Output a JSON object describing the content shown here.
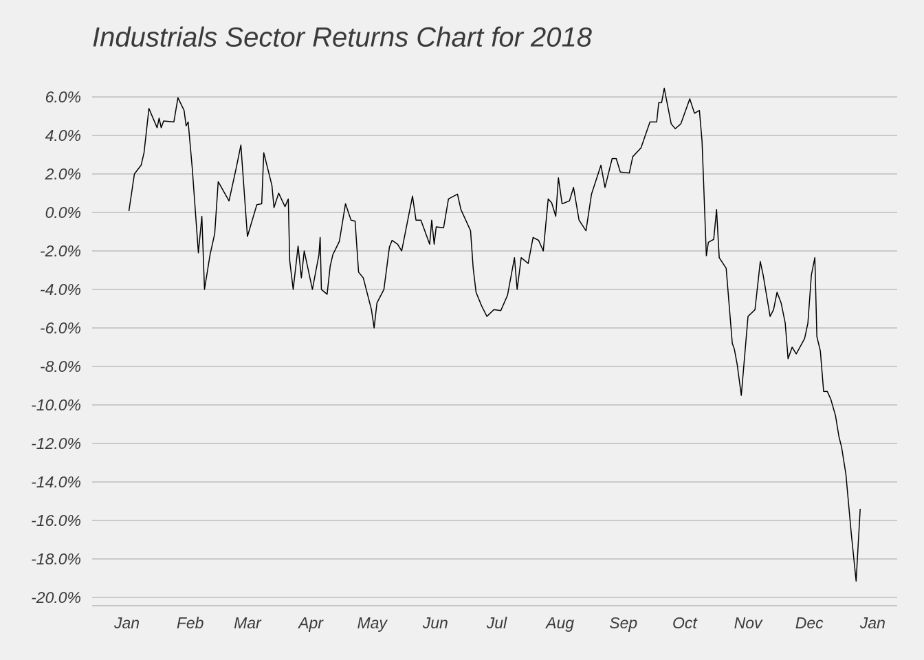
{
  "chart_data": {
    "type": "line",
    "title": "Industrials Sector Returns Chart for 2018",
    "color": "#000000",
    "grid": true,
    "xlim": [
      -17,
      377
    ],
    "ylim": [
      -20.5,
      6.5
    ],
    "xticks": [
      {
        "value": 0,
        "label": "Jan"
      },
      {
        "value": 31,
        "label": "Feb"
      },
      {
        "value": 59,
        "label": "Mar"
      },
      {
        "value": 90,
        "label": "Apr"
      },
      {
        "value": 120,
        "label": "May"
      },
      {
        "value": 151,
        "label": "Jun"
      },
      {
        "value": 181,
        "label": "Jul"
      },
      {
        "value": 212,
        "label": "Aug"
      },
      {
        "value": 243,
        "label": "Sep"
      },
      {
        "value": 273,
        "label": "Oct"
      },
      {
        "value": 304,
        "label": "Nov"
      },
      {
        "value": 334,
        "label": "Dec"
      },
      {
        "value": 365,
        "label": "Jan"
      }
    ],
    "yticks": [
      {
        "value": 6,
        "label": "6.0%"
      },
      {
        "value": 4,
        "label": "4.0%"
      },
      {
        "value": 2,
        "label": "2.0%"
      },
      {
        "value": 0,
        "label": "0.0%"
      },
      {
        "value": -2,
        "label": "-2.0%"
      },
      {
        "value": -4,
        "label": "-4.0%"
      },
      {
        "value": -6,
        "label": "-6.0%"
      },
      {
        "value": -8,
        "label": "-8.0%"
      },
      {
        "value": -10,
        "label": "-10.0%"
      },
      {
        "value": -12,
        "label": "-12.0%"
      },
      {
        "value": -14,
        "label": "-14.0%"
      },
      {
        "value": -16,
        "label": "-16.0%"
      },
      {
        "value": -18,
        "label": "-18.0%"
      },
      {
        "value": -20,
        "label": "-20.0%"
      }
    ],
    "x": [
      1,
      3.7,
      7,
      8.4,
      10.8,
      14.8,
      15.8,
      16.8,
      18,
      23,
      25,
      28,
      29,
      30,
      32,
      35,
      36.7,
      38,
      40.7,
      43,
      44.7,
      50,
      53.5,
      55.8,
      59,
      63.6,
      66,
      67,
      71,
      72,
      74.3,
      77.4,
      79,
      79.7,
      81.4,
      83.8,
      85.4,
      86.8,
      90.8,
      94,
      94.6,
      95.2,
      98,
      99.5,
      100.8,
      104,
      107,
      109.7,
      111.7,
      113.4,
      115.7,
      119.7,
      121,
      122.4,
      125.8,
      128.5,
      129.8,
      132.5,
      134.5,
      139.8,
      141.5,
      143.9,
      148.2,
      149.2,
      150.4,
      151.4,
      155,
      157.4,
      161.8,
      163.5,
      168.2,
      169.5,
      170.9,
      173.6,
      176.2,
      179.6,
      183,
      186.3,
      189.7,
      191,
      193,
      196.4,
      198.8,
      201.5,
      203.8,
      206.2,
      207.9,
      209.9,
      211.2,
      213,
      216.6,
      218.6,
      221.3,
      224.7,
      227.4,
      232,
      234,
      237.5,
      239.5,
      241.5,
      245.9,
      247.6,
      251.6,
      256,
      259.3,
      260.3,
      261.7,
      263,
      266.4,
      268.4,
      271.1,
      275.5,
      277.8,
      280.2,
      281.5,
      283.6,
      284.6,
      287.2,
      288.6,
      289.9,
      293.3,
      296.3,
      297.3,
      298.7,
      300.7,
      302,
      304,
      307.4,
      310,
      311.4,
      314.8,
      316.5,
      318.2,
      320.2,
      322.2,
      323.6,
      325.6,
      327.6,
      331.7,
      333.3,
      335,
      336.7,
      337.7,
      339.4,
      341,
      342.8,
      344.5,
      346.8,
      348.5,
      349.8,
      351.9,
      354.5,
      356.9,
      358.9
    ],
    "values": [
      0.07,
      2.0,
      2.46,
      3.1,
      5.4,
      4.4,
      4.9,
      4.4,
      4.75,
      4.7,
      5.96,
      5.3,
      4.5,
      4.7,
      2.3,
      -2.1,
      -0.2,
      -4,
      -2.2,
      -1.1,
      1.6,
      0.6,
      2.3,
      3.5,
      -1.25,
      0.4,
      0.45,
      3.1,
      1.4,
      0.25,
      1.0,
      0.3,
      0.7,
      -2.5,
      -4,
      -1.75,
      -3.4,
      -2.0,
      -4,
      -2.2,
      -1.3,
      -4,
      -4.25,
      -2.8,
      -2.2,
      -1.5,
      0.45,
      -0.4,
      -0.45,
      -3.1,
      -3.4,
      -5.05,
      -6,
      -4.7,
      -4,
      -1.8,
      -1.45,
      -1.65,
      -2,
      0.85,
      -0.4,
      -0.4,
      -1.65,
      -0.4,
      -1.65,
      -0.75,
      -0.8,
      0.7,
      0.95,
      0.15,
      -0.95,
      -2.9,
      -4.15,
      -4.85,
      -5.4,
      -5.05,
      -5.1,
      -4.3,
      -2.35,
      -4,
      -2.35,
      -2.65,
      -1.3,
      -1.45,
      -2,
      0.7,
      0.5,
      -0.2,
      1.8,
      0.45,
      0.6,
      1.3,
      -0.4,
      -0.95,
      0.95,
      2.45,
      1.3,
      2.8,
      2.8,
      2.1,
      2.05,
      2.9,
      3.35,
      4.7,
      4.7,
      5.7,
      5.7,
      6.45,
      4.6,
      4.35,
      4.6,
      5.9,
      5.15,
      5.3,
      3.7,
      -2.25,
      -1.55,
      -1.4,
      0.15,
      -2.35,
      -2.9,
      -6.8,
      -7.1,
      -7.9,
      -9.5,
      -7.9,
      -5.4,
      -5.05,
      -2.55,
      -3.25,
      -5.4,
      -5.05,
      -4.15,
      -4.7,
      -5.75,
      -7.6,
      -7,
      -7.35,
      -6.55,
      -5.75,
      -3.25,
      -2.35,
      -6.45,
      -7.2,
      -9.3,
      -9.3,
      -9.7,
      -10.55,
      -11.65,
      -12.2,
      -13.6,
      -16.65,
      -19.15,
      -15.4
    ]
  }
}
